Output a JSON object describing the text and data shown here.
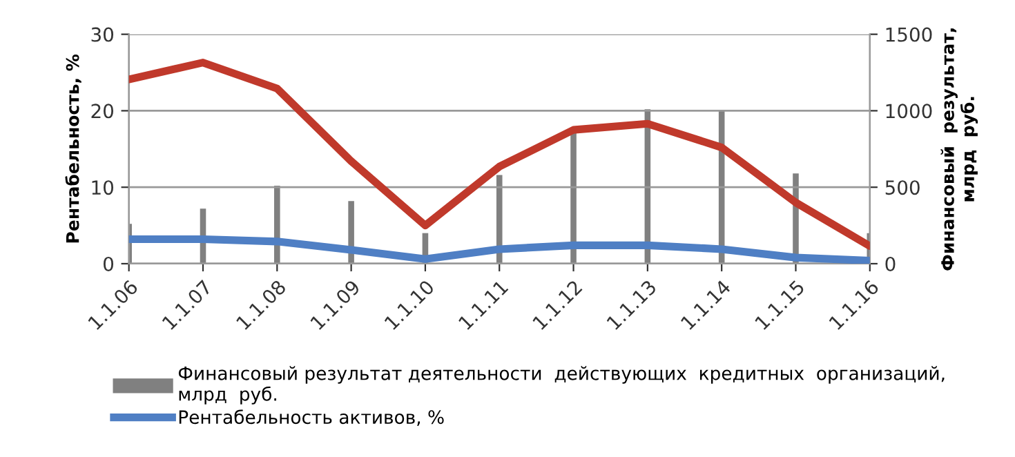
{
  "chart_data": {
    "type": "line",
    "categories": [
      "1.1.06",
      "1.1.07",
      "1.1.08",
      "1.1.09",
      "1.1.10",
      "1.1.11",
      "1.1.12",
      "1.1.13",
      "1.1.14",
      "1.1.15",
      "1.1.16"
    ],
    "ylabel": "Рентабельность, %",
    "y2label": "Финансовый  результат,\nмлрд  руб.",
    "ylim": [
      0,
      30
    ],
    "yticks": [
      0,
      10,
      20,
      30
    ],
    "y2lim": [
      0,
      1500
    ],
    "y2ticks": [
      0,
      500,
      1000,
      1500
    ],
    "grid": "y",
    "legend": "bottom left",
    "marker": "none",
    "line_style": "solid",
    "series": [
      {
        "name": "Финансовый результат деятельности  действующих  кредитных  организаций,\nмлрд  руб.",
        "type": "bar",
        "axis": "y2",
        "color": "#808080",
        "values": [
          260,
          360,
          510,
          410,
          200,
          580,
          880,
          1010,
          1000,
          590,
          200
        ]
      },
      {
        "name": "Рентабельность активов, %",
        "type": "line",
        "color": "#4f7fc4",
        "values": [
          3.2,
          3.2,
          2.9,
          1.8,
          0.6,
          1.9,
          2.4,
          2.4,
          1.9,
          0.8,
          0.4
        ]
      },
      {
        "color": "#c0392b",
        "values": [
          24.1,
          26.3,
          22.9,
          13.4,
          5.0,
          12.7,
          17.5,
          18.3,
          15.2,
          8.0,
          2.3
        ]
      }
    ]
  }
}
